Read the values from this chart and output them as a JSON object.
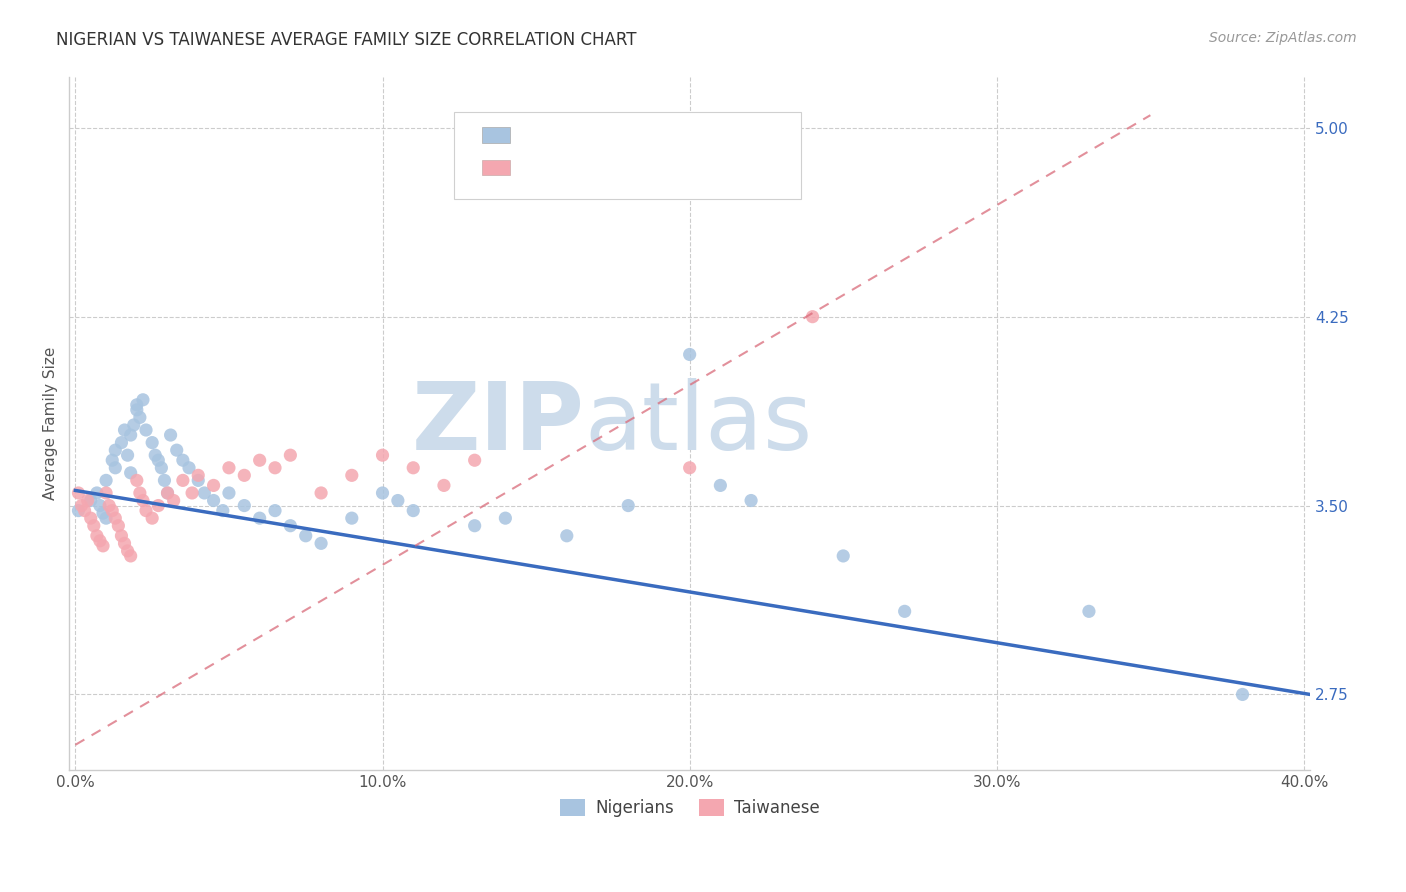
{
  "title": "NIGERIAN VS TAIWANESE AVERAGE FAMILY SIZE CORRELATION CHART",
  "source": "Source: ZipAtlas.com",
  "ylabel": "Average Family Size",
  "xlim": [
    -0.002,
    0.402
  ],
  "ylim": [
    2.45,
    5.2
  ],
  "yticks": [
    2.75,
    3.5,
    4.25,
    5.0
  ],
  "xticks": [
    0.0,
    0.1,
    0.2,
    0.3,
    0.4
  ],
  "xtick_labels": [
    "0.0%",
    "10.0%",
    "20.0%",
    "30.0%",
    "40.0%"
  ],
  "nigerian_color": "#a8c4e0",
  "taiwanese_color": "#f4a7b0",
  "nigerian_line_color": "#3a6bbf",
  "taiwanese_line_color": "#d96b7a",
  "watermark_zip": "ZIP",
  "watermark_atlas": "atlas",
  "watermark_color": "#cddceb",
  "legend_nigerian_label": "Nigerians",
  "legend_taiwanese_label": "Taiwanese",
  "nigerian_x": [
    0.001,
    0.005,
    0.007,
    0.008,
    0.009,
    0.01,
    0.01,
    0.012,
    0.013,
    0.013,
    0.015,
    0.016,
    0.017,
    0.018,
    0.018,
    0.019,
    0.02,
    0.02,
    0.021,
    0.022,
    0.023,
    0.025,
    0.026,
    0.027,
    0.028,
    0.029,
    0.03,
    0.031,
    0.033,
    0.035,
    0.037,
    0.04,
    0.042,
    0.045,
    0.048,
    0.05,
    0.055,
    0.06,
    0.065,
    0.07,
    0.075,
    0.08,
    0.09,
    0.1,
    0.105,
    0.11,
    0.13,
    0.14,
    0.16,
    0.18,
    0.2,
    0.21,
    0.22,
    0.25,
    0.27,
    0.33,
    0.38
  ],
  "nigerian_y": [
    3.48,
    3.52,
    3.55,
    3.5,
    3.47,
    3.6,
    3.45,
    3.68,
    3.72,
    3.65,
    3.75,
    3.8,
    3.7,
    3.78,
    3.63,
    3.82,
    3.9,
    3.88,
    3.85,
    3.92,
    3.8,
    3.75,
    3.7,
    3.68,
    3.65,
    3.6,
    3.55,
    3.78,
    3.72,
    3.68,
    3.65,
    3.6,
    3.55,
    3.52,
    3.48,
    3.55,
    3.5,
    3.45,
    3.48,
    3.42,
    3.38,
    3.35,
    3.45,
    3.55,
    3.52,
    3.48,
    3.42,
    3.45,
    3.38,
    3.5,
    4.1,
    3.58,
    3.52,
    3.3,
    3.08,
    3.08,
    2.75
  ],
  "taiwanese_x": [
    0.001,
    0.002,
    0.003,
    0.004,
    0.005,
    0.006,
    0.007,
    0.008,
    0.009,
    0.01,
    0.011,
    0.012,
    0.013,
    0.014,
    0.015,
    0.016,
    0.017,
    0.018,
    0.02,
    0.021,
    0.022,
    0.023,
    0.025,
    0.027,
    0.03,
    0.032,
    0.035,
    0.038,
    0.04,
    0.045,
    0.05,
    0.055,
    0.06,
    0.065,
    0.07,
    0.08,
    0.09,
    0.1,
    0.11,
    0.12,
    0.13,
    0.2,
    0.24
  ],
  "taiwanese_y": [
    3.55,
    3.5,
    3.48,
    3.52,
    3.45,
    3.42,
    3.38,
    3.36,
    3.34,
    3.55,
    3.5,
    3.48,
    3.45,
    3.42,
    3.38,
    3.35,
    3.32,
    3.3,
    3.6,
    3.55,
    3.52,
    3.48,
    3.45,
    3.5,
    3.55,
    3.52,
    3.6,
    3.55,
    3.62,
    3.58,
    3.65,
    3.62,
    3.68,
    3.65,
    3.7,
    3.55,
    3.62,
    3.7,
    3.65,
    3.58,
    3.68,
    3.65,
    4.25
  ],
  "nigerian_line_x0": 0.0,
  "nigerian_line_x1": 0.402,
  "nigerian_line_y0": 3.56,
  "nigerian_line_y1": 2.75,
  "taiwanese_line_x0": 0.0,
  "taiwanese_line_x1": 0.35,
  "taiwanese_line_y0": 2.55,
  "taiwanese_line_y1": 5.05
}
